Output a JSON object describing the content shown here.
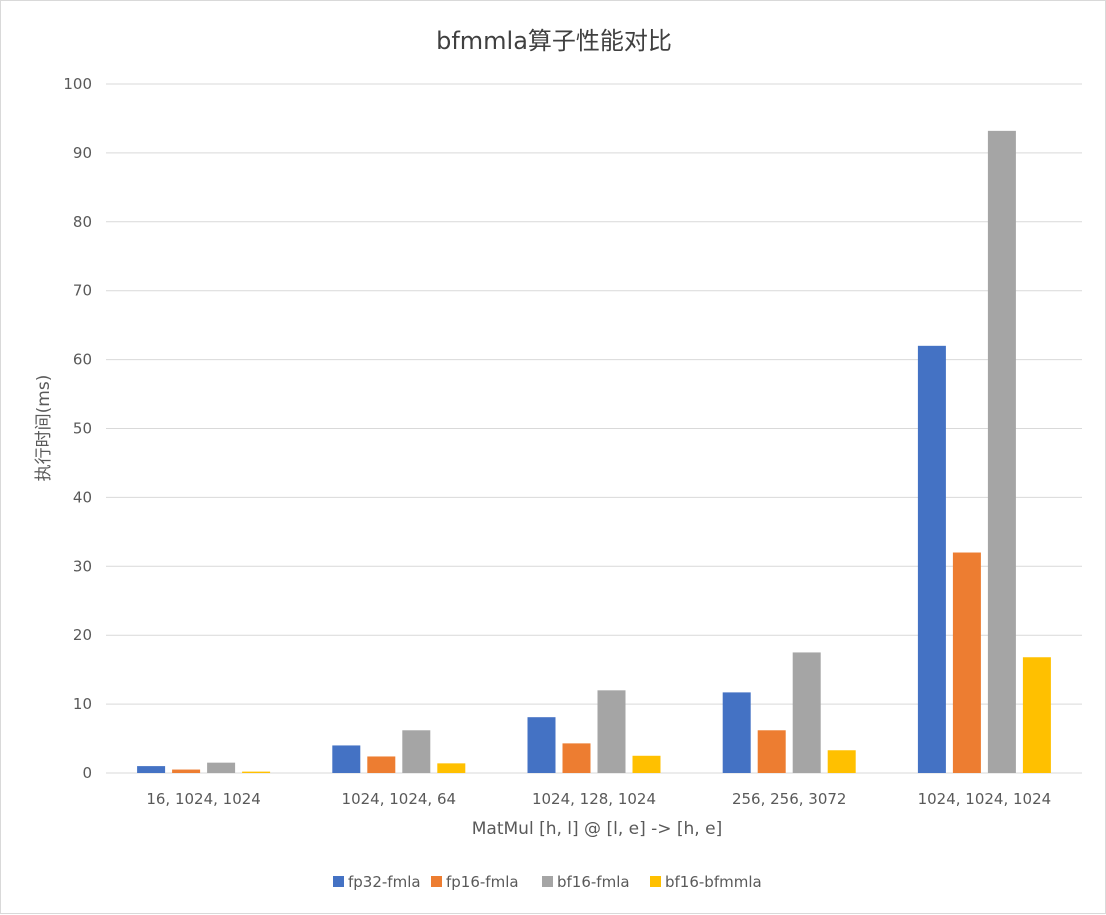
{
  "chart_data": {
    "type": "bar",
    "title": "bfmmla算子性能对比",
    "xlabel": "MatMul [h, l] @ [l, e] -> [h, e]",
    "ylabel": "执行时间(ms)",
    "ylim": [
      0,
      100
    ],
    "yticks": [
      0,
      10,
      20,
      30,
      40,
      50,
      60,
      70,
      80,
      90,
      100
    ],
    "grid": true,
    "legend_position": "bottom",
    "categories": [
      "16, 1024, 1024",
      "1024, 1024, 64",
      "1024, 128, 1024",
      "256, 256, 3072",
      "1024, 1024, 1024"
    ],
    "series": [
      {
        "name": "fp32-fmla",
        "color": "#4472c4",
        "values": [
          1.0,
          4.0,
          8.1,
          11.7,
          62.0
        ]
      },
      {
        "name": "fp16-fmla",
        "color": "#ed7d31",
        "values": [
          0.5,
          2.4,
          4.3,
          6.2,
          32.0
        ]
      },
      {
        "name": "bf16-fmla",
        "color": "#a5a5a5",
        "values": [
          1.5,
          6.2,
          12.0,
          17.5,
          93.2
        ]
      },
      {
        "name": "bf16-bfmmla",
        "color": "#ffc000",
        "values": [
          0.2,
          1.4,
          2.5,
          3.3,
          16.8
        ]
      }
    ]
  }
}
